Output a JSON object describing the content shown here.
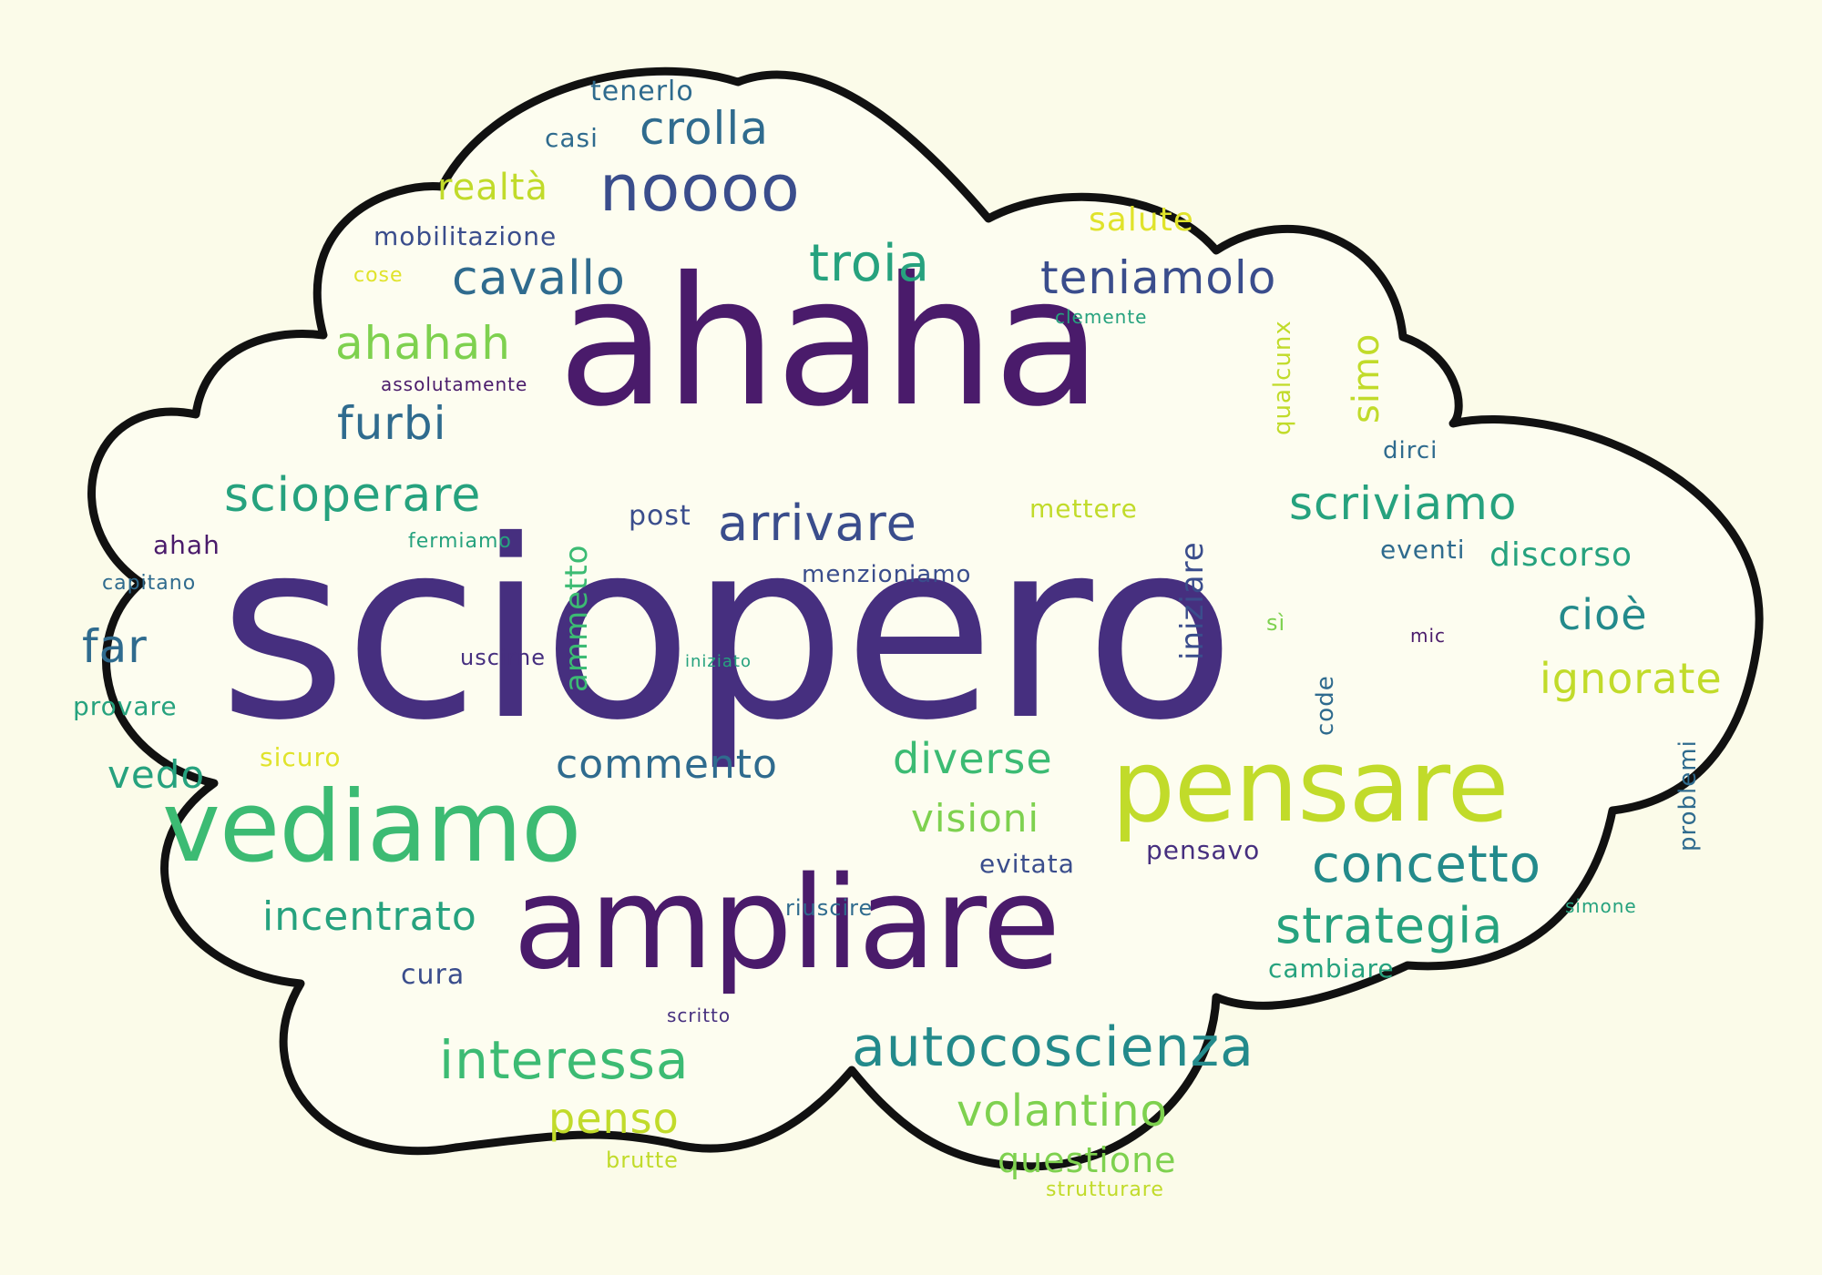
{
  "palette": {
    "background": "#fbfbe9",
    "cloud_fill": "#fdfdf0",
    "cloud_outline": "#111111",
    "c1": "#4a1b6b",
    "c2": "#462f7f",
    "c3": "#3a4d8c",
    "c4": "#2f6b8e",
    "c5": "#238a8b",
    "c6": "#26a27e",
    "c7": "#3cbb73",
    "c8": "#7ed14f",
    "c9": "#c1db2a",
    "c10": "#e0e32b"
  },
  "words": [
    {
      "key": "sciopero",
      "text": "sciopero"
    },
    {
      "key": "ahaha",
      "text": "ahaha"
    },
    {
      "key": "ampliare",
      "text": "ampliare"
    },
    {
      "key": "vediamo",
      "text": "vediamo"
    },
    {
      "key": "pensare",
      "text": "pensare"
    },
    {
      "key": "noooo",
      "text": "noooo"
    },
    {
      "key": "autocoscienza",
      "text": "autocoscienza"
    },
    {
      "key": "interessa",
      "text": "interessa"
    },
    {
      "key": "concetto",
      "text": "concetto"
    },
    {
      "key": "strategia",
      "text": "strategia"
    },
    {
      "key": "scriviamo",
      "text": "scriviamo"
    },
    {
      "key": "scioperare",
      "text": "scioperare"
    },
    {
      "key": "arrivare",
      "text": "arrivare"
    },
    {
      "key": "cavallo",
      "text": "cavallo"
    },
    {
      "key": "teniamolo",
      "text": "teniamolo"
    },
    {
      "key": "troia",
      "text": "troia"
    },
    {
      "key": "crolla",
      "text": "crolla"
    },
    {
      "key": "ahahah",
      "text": "ahahah"
    },
    {
      "key": "furbi",
      "text": "furbi"
    },
    {
      "key": "commento",
      "text": "commento"
    },
    {
      "key": "diverse",
      "text": "diverse"
    },
    {
      "key": "visioni",
      "text": "visioni"
    },
    {
      "key": "incentrato",
      "text": "incentrato"
    },
    {
      "key": "volantino",
      "text": "volantino"
    },
    {
      "key": "penso",
      "text": "penso"
    },
    {
      "key": "questione",
      "text": "questione"
    },
    {
      "key": "ignorate",
      "text": "ignorate"
    },
    {
      "key": "cioe",
      "text": "cioè"
    },
    {
      "key": "far",
      "text": "far"
    },
    {
      "key": "vedo",
      "text": "vedo"
    },
    {
      "key": "discorso",
      "text": "discorso"
    },
    {
      "key": "realta",
      "text": "realtà"
    },
    {
      "key": "tenerlo",
      "text": "tenerlo"
    },
    {
      "key": "casi",
      "text": "casi"
    },
    {
      "key": "salute",
      "text": "salute"
    },
    {
      "key": "mobilitazione",
      "text": "mobilitazione"
    },
    {
      "key": "cose",
      "text": "cose"
    },
    {
      "key": "clemente",
      "text": "clemente"
    },
    {
      "key": "assolutamente",
      "text": "assolutamente"
    },
    {
      "key": "dirci",
      "text": "dirci"
    },
    {
      "key": "post",
      "text": "post"
    },
    {
      "key": "mettere",
      "text": "mettere"
    },
    {
      "key": "ahah",
      "text": "ahah"
    },
    {
      "key": "fermiamo",
      "text": "fermiamo"
    },
    {
      "key": "eventi",
      "text": "eventi"
    },
    {
      "key": "capitano",
      "text": "capitano"
    },
    {
      "key": "menzioniamo",
      "text": "menzioniamo"
    },
    {
      "key": "si",
      "text": "sì"
    },
    {
      "key": "mic",
      "text": "mic"
    },
    {
      "key": "uscirne",
      "text": "uscirne"
    },
    {
      "key": "iniziato",
      "text": "iniziato"
    },
    {
      "key": "provare",
      "text": "provare"
    },
    {
      "key": "sicuro",
      "text": "sicuro"
    },
    {
      "key": "evitata",
      "text": "evitata"
    },
    {
      "key": "pensavo",
      "text": "pensavo"
    },
    {
      "key": "riuscire",
      "text": "riuscire"
    },
    {
      "key": "simone",
      "text": "simone"
    },
    {
      "key": "cura",
      "text": "cura"
    },
    {
      "key": "cambiare",
      "text": "cambiare"
    },
    {
      "key": "scritto",
      "text": "scritto"
    },
    {
      "key": "brutte",
      "text": "brutte"
    },
    {
      "key": "strutturare",
      "text": "strutturare"
    },
    {
      "key": "qualcunx",
      "text": "qualcunx"
    },
    {
      "key": "simo",
      "text": "simo"
    },
    {
      "key": "iniziare",
      "text": "iniziare"
    },
    {
      "key": "ammetto",
      "text": "ammetto"
    },
    {
      "key": "code",
      "text": "code"
    },
    {
      "key": "problemi",
      "text": "problemi"
    }
  ]
}
